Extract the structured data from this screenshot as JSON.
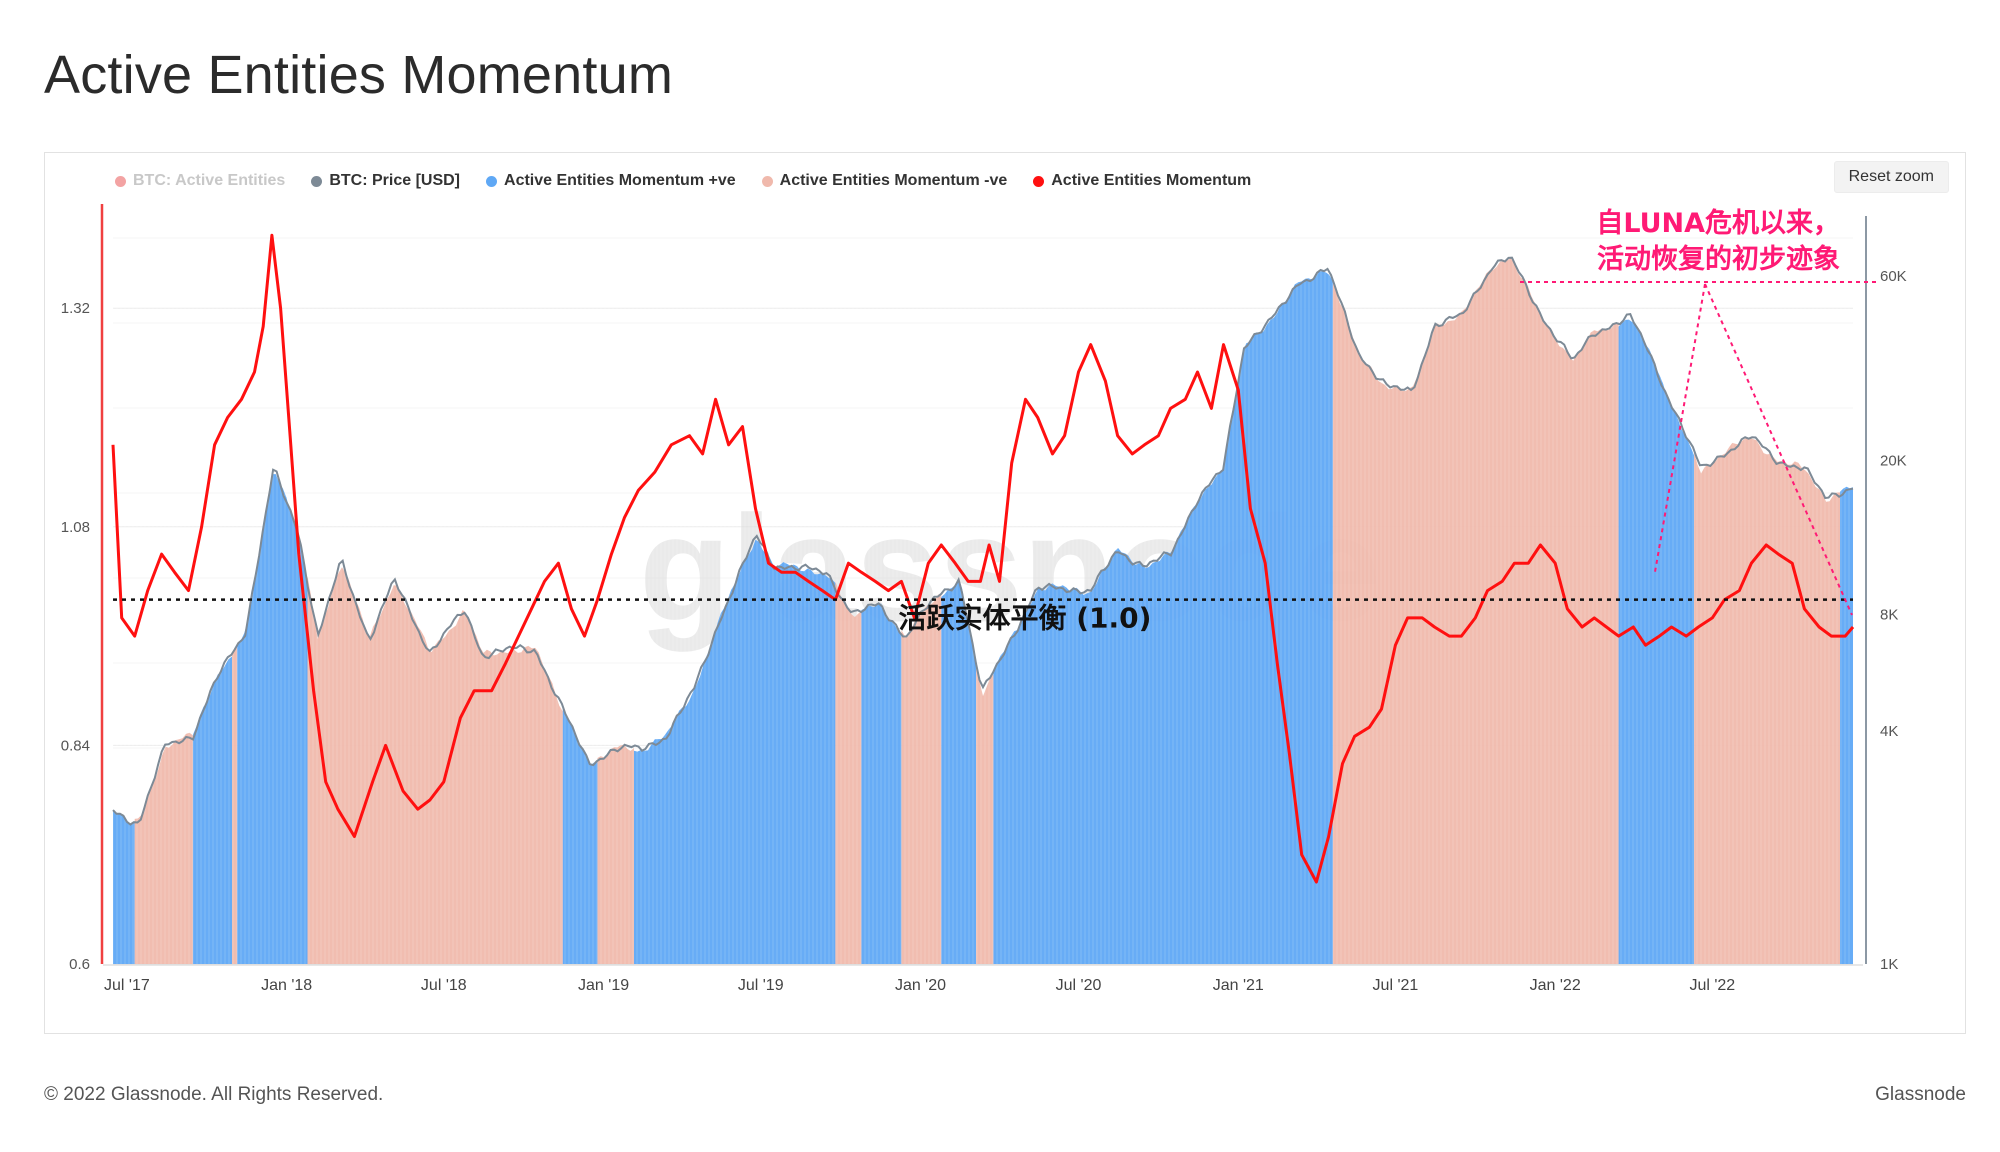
{
  "title": "Active Entities Momentum",
  "reset_zoom": "Reset zoom",
  "footer": {
    "copyright": "© 2022 Glassnode. All Rights Reserved.",
    "brand": "Glassnode"
  },
  "watermark": "glassnode",
  "annotation": {
    "line1": "自LUNA危机以来，",
    "line2": "活动恢复的初步迹象",
    "balance_label": "活跃实体平衡 (1.0)",
    "color": "#ff1a75"
  },
  "colors": {
    "positive": "#5fa8f5",
    "negative": "#f0b9ac",
    "momentum": "#ff1010",
    "price": "#7d8a96",
    "active_entities": "#f04040"
  },
  "chart_data": {
    "type": "line",
    "legend": [
      {
        "name": "BTC: Active Entities",
        "color": "#f04040",
        "visible": false
      },
      {
        "name": "BTC: Price [USD]",
        "color": "#7d8a96",
        "visible": true
      },
      {
        "name": "Active Entities Momentum +ve",
        "color": "#5fa8f5",
        "visible": true
      },
      {
        "name": "Active Entities Momentum -ve",
        "color": "#f0b9ac",
        "visible": true
      },
      {
        "name": "Active Entities Momentum",
        "color": "#ff1010",
        "visible": true
      }
    ],
    "x_ticks": [
      "Jul '17",
      "Jan '18",
      "Jul '18",
      "Jan '19",
      "Jul '19",
      "Jan '20",
      "Jul '20",
      "Jan '21",
      "Jul '21",
      "Jan '22",
      "Jul '22"
    ],
    "x_range": [
      "2017-06-15",
      "2022-12-10"
    ],
    "y_left": {
      "ticks": [
        0.6,
        0.84,
        1.08,
        1.32
      ],
      "range": [
        0.6,
        1.43
      ]
    },
    "y_right": {
      "ticks": [
        1000,
        4000,
        8000,
        20000,
        60000
      ],
      "tick_labels": [
        "1K",
        "4K",
        "8K",
        "20K",
        "60K"
      ],
      "scale": "log",
      "range": [
        1000,
        90000
      ]
    },
    "balance_level": 1.0,
    "momentum_series": {
      "name": "Active Entities Momentum",
      "x": [
        "2017-06-15",
        "2017-06-25",
        "2017-07-10",
        "2017-07-25",
        "2017-08-10",
        "2017-08-25",
        "2017-09-10",
        "2017-09-25",
        "2017-10-10",
        "2017-10-25",
        "2017-11-10",
        "2017-11-25",
        "2017-12-05",
        "2017-12-15",
        "2017-12-25",
        "2018-01-05",
        "2018-01-15",
        "2018-02-01",
        "2018-02-15",
        "2018-03-01",
        "2018-03-20",
        "2018-04-10",
        "2018-04-25",
        "2018-05-15",
        "2018-06-01",
        "2018-06-15",
        "2018-07-01",
        "2018-07-20",
        "2018-08-05",
        "2018-08-25",
        "2018-09-10",
        "2018-09-25",
        "2018-10-10",
        "2018-10-25",
        "2018-11-10",
        "2018-11-25",
        "2018-12-10",
        "2018-12-25",
        "2019-01-10",
        "2019-01-25",
        "2019-02-10",
        "2019-03-01",
        "2019-03-20",
        "2019-04-10",
        "2019-04-25",
        "2019-05-10",
        "2019-05-25",
        "2019-06-10",
        "2019-06-25",
        "2019-07-10",
        "2019-07-25",
        "2019-08-10",
        "2019-08-25",
        "2019-09-10",
        "2019-09-25",
        "2019-10-10",
        "2019-10-25",
        "2019-11-10",
        "2019-11-25",
        "2019-12-10",
        "2019-12-25",
        "2020-01-10",
        "2020-01-25",
        "2020-02-10",
        "2020-02-25",
        "2020-03-10",
        "2020-03-20",
        "2020-04-01",
        "2020-04-15",
        "2020-05-01",
        "2020-05-15",
        "2020-06-01",
        "2020-06-15",
        "2020-07-01",
        "2020-07-15",
        "2020-08-01",
        "2020-08-15",
        "2020-09-01",
        "2020-09-15",
        "2020-10-01",
        "2020-10-15",
        "2020-11-01",
        "2020-11-15",
        "2020-12-01",
        "2020-12-15",
        "2021-01-01",
        "2021-01-15",
        "2021-02-01",
        "2021-02-15",
        "2021-03-01",
        "2021-03-15",
        "2021-04-01",
        "2021-04-15",
        "2021-05-01",
        "2021-05-15",
        "2021-06-01",
        "2021-06-15",
        "2021-07-01",
        "2021-07-15",
        "2021-08-01",
        "2021-08-15",
        "2021-09-01",
        "2021-09-15",
        "2021-10-01",
        "2021-10-15",
        "2021-11-01",
        "2021-11-15",
        "2021-12-01",
        "2021-12-15",
        "2022-01-01",
        "2022-01-15",
        "2022-02-01",
        "2022-02-15",
        "2022-03-01",
        "2022-03-15",
        "2022-04-01",
        "2022-04-15",
        "2022-05-01",
        "2022-05-15",
        "2022-06-01",
        "2022-06-15",
        "2022-07-01",
        "2022-07-15",
        "2022-08-01",
        "2022-08-15",
        "2022-09-01",
        "2022-09-15",
        "2022-10-01",
        "2022-10-15",
        "2022-11-01",
        "2022-11-15",
        "2022-12-01",
        "2022-12-10"
      ],
      "values": [
        1.17,
        0.98,
        0.96,
        1.01,
        1.05,
        1.03,
        1.01,
        1.08,
        1.17,
        1.2,
        1.22,
        1.25,
        1.3,
        1.4,
        1.32,
        1.18,
        1.05,
        0.9,
        0.8,
        0.77,
        0.74,
        0.8,
        0.84,
        0.79,
        0.77,
        0.78,
        0.8,
        0.87,
        0.9,
        0.9,
        0.93,
        0.96,
        0.99,
        1.02,
        1.04,
        0.99,
        0.96,
        1.0,
        1.05,
        1.09,
        1.12,
        1.14,
        1.17,
        1.18,
        1.16,
        1.22,
        1.17,
        1.19,
        1.1,
        1.04,
        1.03,
        1.03,
        1.02,
        1.01,
        1.0,
        1.04,
        1.03,
        1.02,
        1.01,
        1.02,
        0.98,
        1.04,
        1.06,
        1.04,
        1.02,
        1.02,
        1.06,
        1.02,
        1.15,
        1.22,
        1.2,
        1.16,
        1.18,
        1.25,
        1.28,
        1.24,
        1.18,
        1.16,
        1.17,
        1.18,
        1.21,
        1.22,
        1.25,
        1.21,
        1.28,
        1.23,
        1.1,
        1.04,
        0.93,
        0.83,
        0.72,
        0.69,
        0.74,
        0.82,
        0.85,
        0.86,
        0.88,
        0.95,
        0.98,
        0.98,
        0.97,
        0.96,
        0.96,
        0.98,
        1.01,
        1.02,
        1.04,
        1.04,
        1.06,
        1.04,
        0.99,
        0.97,
        0.98,
        0.97,
        0.96,
        0.97,
        0.95,
        0.96,
        0.97,
        0.96,
        0.97,
        0.98,
        1.0,
        1.01,
        1.04,
        1.06,
        1.05,
        1.04,
        0.99,
        0.97,
        0.96,
        0.96,
        0.97
      ]
    },
    "price_series": {
      "name": "BTC: Price [USD]",
      "x": [
        "2017-06-15",
        "2017-07-15",
        "2017-08-15",
        "2017-09-15",
        "2017-10-15",
        "2017-11-15",
        "2017-12-17",
        "2018-01-15",
        "2018-02-06",
        "2018-03-05",
        "2018-04-06",
        "2018-05-05",
        "2018-06-15",
        "2018-07-25",
        "2018-08-15",
        "2018-09-15",
        "2018-10-15",
        "2018-11-20",
        "2018-12-15",
        "2019-01-15",
        "2019-02-15",
        "2019-03-15",
        "2019-04-15",
        "2019-05-15",
        "2019-06-26",
        "2019-07-15",
        "2019-08-15",
        "2019-09-15",
        "2019-10-15",
        "2019-11-15",
        "2019-12-15",
        "2020-01-15",
        "2020-02-15",
        "2020-03-12",
        "2020-04-15",
        "2020-05-15",
        "2020-06-15",
        "2020-07-15",
        "2020-08-15",
        "2020-09-15",
        "2020-10-15",
        "2020-11-15",
        "2020-12-15",
        "2021-01-08",
        "2021-02-15",
        "2021-03-13",
        "2021-04-14",
        "2021-05-19",
        "2021-06-22",
        "2021-07-20",
        "2021-08-15",
        "2021-09-15",
        "2021-10-20",
        "2021-11-10",
        "2021-12-15",
        "2022-01-22",
        "2022-02-15",
        "2022-03-28",
        "2022-04-15",
        "2022-05-12",
        "2022-06-18",
        "2022-07-15",
        "2022-08-15",
        "2022-09-15",
        "2022-10-15",
        "2022-11-09",
        "2022-11-20",
        "2022-12-10"
      ],
      "values": [
        2500,
        2300,
        3700,
        3900,
        5600,
        7300,
        19000,
        13000,
        7000,
        11000,
        6900,
        9800,
        6400,
        8200,
        6300,
        6500,
        6500,
        4300,
        3300,
        3600,
        3600,
        3900,
        5100,
        7800,
        12800,
        10800,
        10500,
        10300,
        8000,
        8500,
        7000,
        8700,
        9900,
        5000,
        7000,
        9300,
        9400,
        9200,
        11700,
        10700,
        11400,
        16000,
        19000,
        40000,
        48000,
        58000,
        63000,
        38000,
        31000,
        30000,
        45000,
        47000,
        64000,
        67000,
        48000,
        36000,
        43000,
        47000,
        40000,
        29000,
        19000,
        21000,
        23000,
        20000,
        19000,
        16000,
        16500,
        17100
      ]
    },
    "momentum_regimes": [
      {
        "from": "2017-06-15",
        "to": "2017-07-10",
        "sign": "+"
      },
      {
        "from": "2017-07-10",
        "to": "2017-09-15",
        "sign": "-"
      },
      {
        "from": "2017-09-15",
        "to": "2017-10-30",
        "sign": "+"
      },
      {
        "from": "2017-10-30",
        "to": "2017-11-05",
        "sign": "-"
      },
      {
        "from": "2017-11-05",
        "to": "2018-01-25",
        "sign": "+"
      },
      {
        "from": "2018-01-25",
        "to": "2018-11-15",
        "sign": "-"
      },
      {
        "from": "2018-11-15",
        "to": "2018-12-25",
        "sign": "+"
      },
      {
        "from": "2018-12-25",
        "to": "2019-02-05",
        "sign": "-"
      },
      {
        "from": "2019-02-05",
        "to": "2019-09-25",
        "sign": "+"
      },
      {
        "from": "2019-09-25",
        "to": "2019-10-25",
        "sign": "-"
      },
      {
        "from": "2019-10-25",
        "to": "2019-12-10",
        "sign": "+"
      },
      {
        "from": "2019-12-10",
        "to": "2020-01-25",
        "sign": "-"
      },
      {
        "from": "2020-01-25",
        "to": "2020-03-05",
        "sign": "+"
      },
      {
        "from": "2020-03-05",
        "to": "2020-03-25",
        "sign": "-"
      },
      {
        "from": "2020-03-25",
        "to": "2021-04-20",
        "sign": "+"
      },
      {
        "from": "2021-04-20",
        "to": "2022-03-15",
        "sign": "-"
      },
      {
        "from": "2022-03-15",
        "to": "2022-06-10",
        "sign": "+"
      },
      {
        "from": "2022-06-10",
        "to": "2022-11-25",
        "sign": "-"
      },
      {
        "from": "2022-11-25",
        "to": "2022-12-10",
        "sign": "+"
      }
    ]
  }
}
